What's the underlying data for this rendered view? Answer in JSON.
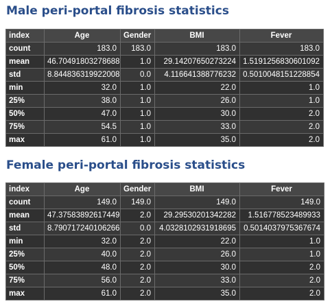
{
  "sections": [
    {
      "title": "Male peri-portal fibrosis statistics",
      "columns": [
        "index",
        "Age",
        "Gender",
        "BMI",
        "Fever"
      ],
      "rows": [
        [
          "count",
          "183.0",
          "183.0",
          "183.0",
          "183.0"
        ],
        [
          "mean",
          "46.704918032786885",
          "1.0",
          "29.14207650273224",
          "1.5191256830601092"
        ],
        [
          "std",
          "8.844836319922008",
          "0.0",
          "4.116641388776232",
          "0.5010048151228854"
        ],
        [
          "min",
          "32.0",
          "1.0",
          "22.0",
          "1.0"
        ],
        [
          "25%",
          "38.0",
          "1.0",
          "26.0",
          "1.0"
        ],
        [
          "50%",
          "47.0",
          "1.0",
          "30.0",
          "2.0"
        ],
        [
          "75%",
          "54.5",
          "1.0",
          "33.0",
          "2.0"
        ],
        [
          "max",
          "61.0",
          "1.0",
          "35.0",
          "2.0"
        ]
      ]
    },
    {
      "title": "Female peri-portal fibrosis statistics",
      "columns": [
        "index",
        "Age",
        "Gender",
        "BMI",
        "Fever"
      ],
      "rows": [
        [
          "count",
          "149.0",
          "149.0",
          "149.0",
          "149.0"
        ],
        [
          "mean",
          "47.375838926174495",
          "2.0",
          "29.29530201342282",
          "1.516778523489933"
        ],
        [
          "std",
          "8.790717240106266",
          "0.0",
          "4.0328102931918695",
          "0.5014037975367674"
        ],
        [
          "min",
          "32.0",
          "2.0",
          "22.0",
          "1.0"
        ],
        [
          "25%",
          "40.0",
          "2.0",
          "26.0",
          "1.0"
        ],
        [
          "50%",
          "48.0",
          "2.0",
          "30.0",
          "2.0"
        ],
        [
          "75%",
          "56.0",
          "2.0",
          "33.0",
          "2.0"
        ],
        [
          "max",
          "61.0",
          "2.0",
          "35.0",
          "2.0"
        ]
      ]
    }
  ],
  "colors": {
    "title": "#2a4e8a",
    "table_background": "#343434",
    "header_background": "#474747",
    "text": "#ffffff"
  }
}
